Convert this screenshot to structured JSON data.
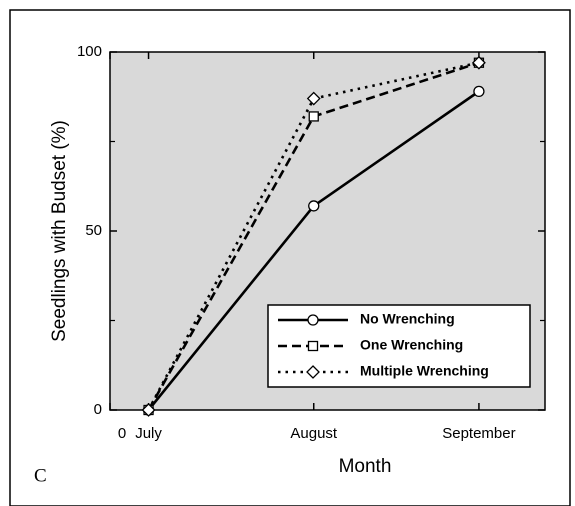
{
  "chart_data": {
    "type": "line",
    "x_label": "Month",
    "y_label": "Seedlings with Budset (%)",
    "annotation": "C",
    "x": [
      7,
      37,
      67
    ],
    "xlim": [
      0,
      79
    ],
    "xticks": [
      {
        "value": 0,
        "label": "0"
      },
      {
        "value": 7,
        "label": "July"
      },
      {
        "value": 37,
        "label": "August"
      },
      {
        "value": 67,
        "label": "September"
      }
    ],
    "ylim": [
      0,
      100
    ],
    "yticks": [
      0,
      50,
      100
    ],
    "yminorticks": [
      25,
      75
    ],
    "background": "#d9d9d9",
    "legend": "lower right",
    "series": [
      {
        "name": "No Wrenching",
        "color": "#000000",
        "dash": "solid",
        "marker": "circle",
        "values": [
          0,
          57,
          89
        ]
      },
      {
        "name": "One Wrenching",
        "color": "#000000",
        "dash": "dashed",
        "marker": "square",
        "values": [
          0,
          82,
          97
        ]
      },
      {
        "name": "Multiple Wrenching",
        "color": "#000000",
        "dash": "dotted",
        "marker": "diamond",
        "values": [
          0,
          87,
          97
        ]
      }
    ]
  }
}
